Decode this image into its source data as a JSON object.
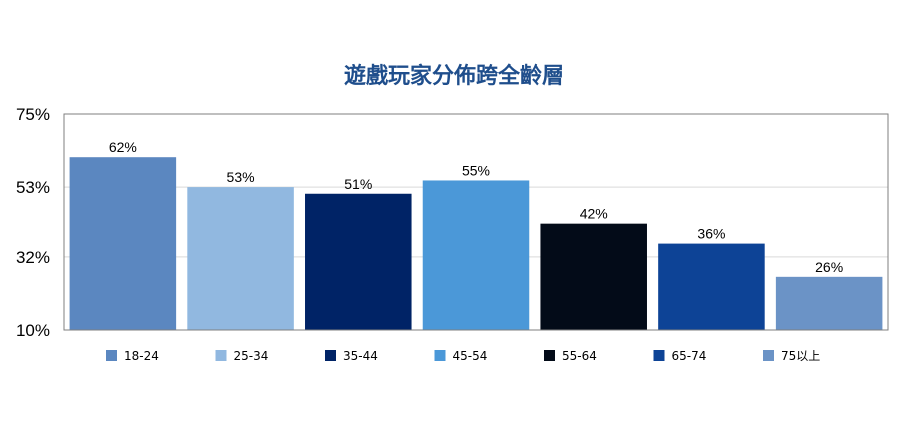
{
  "chart_data": {
    "type": "bar",
    "title": "遊戲玩家分佈跨全齡層",
    "xlabel": "",
    "ylabel": "",
    "categories": [
      "18-24",
      "25-34",
      "35-44",
      "45-54",
      "55-64",
      "65-74",
      "75以上"
    ],
    "values": [
      62,
      53,
      51,
      55,
      42,
      36,
      26
    ],
    "data_labels": [
      "62%",
      "53%",
      "51%",
      "55%",
      "42%",
      "36%",
      "26%"
    ],
    "colors": [
      "#5b87c0",
      "#91b8e0",
      "#002366",
      "#4b98d8",
      "#030b18",
      "#0d4396",
      "#6b93c6"
    ],
    "ylim": [
      10,
      75
    ],
    "yticks": [
      10,
      32,
      53,
      75
    ],
    "ytick_labels": [
      "10%",
      "32%",
      "53%",
      "75%"
    ],
    "grid": true,
    "legend": "bottom"
  }
}
